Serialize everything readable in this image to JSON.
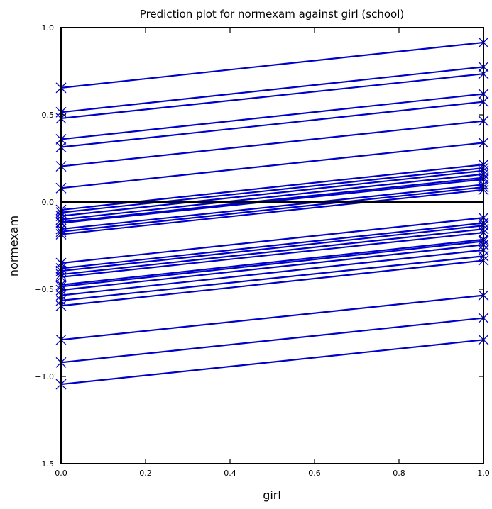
{
  "chart_data": {
    "type": "line",
    "title": "Prediction plot for normexam against girl (school)",
    "xlabel": "girl",
    "ylabel": "normexam",
    "xlim": [
      0.0,
      1.0
    ],
    "ylim": [
      -1.5,
      1.0
    ],
    "x_ticks": [
      0.0,
      0.2,
      0.4,
      0.6,
      0.8,
      1.0
    ],
    "x_tick_labels": [
      "0.0",
      "0.2",
      "0.4",
      "0.6",
      "0.8",
      "1.0"
    ],
    "y_ticks": [
      -1.5,
      -1.0,
      -0.5,
      0.0,
      0.5,
      1.0
    ],
    "y_tick_labels": [
      "−1.5",
      "−1.0",
      "−0.5",
      "0.0",
      "0.5",
      "1.0"
    ],
    "reference_line_y": 0.0,
    "line_color": "#0000cc",
    "reference_color": "#000000",
    "marker": "x",
    "grid": false,
    "series": [
      {
        "values": [
          0.655,
          0.915
        ]
      },
      {
        "values": [
          0.515,
          0.775
        ]
      },
      {
        "values": [
          0.48,
          0.735
        ]
      },
      {
        "values": [
          0.36,
          0.62
        ]
      },
      {
        "values": [
          0.315,
          0.575
        ]
      },
      {
        "values": [
          0.205,
          0.465
        ]
      },
      {
        "values": [
          0.08,
          0.34
        ]
      },
      {
        "values": [
          -0.045,
          0.215
        ]
      },
      {
        "values": [
          -0.06,
          0.195
        ]
      },
      {
        "values": [
          -0.08,
          0.18
        ]
      },
      {
        "values": [
          -0.1,
          0.16
        ]
      },
      {
        "values": [
          -0.115,
          0.14
        ]
      },
      {
        "values": [
          -0.12,
          0.13
        ]
      },
      {
        "values": [
          -0.155,
          0.1
        ]
      },
      {
        "values": [
          -0.17,
          0.085
        ]
      },
      {
        "values": [
          -0.185,
          0.07
        ]
      },
      {
        "values": [
          -0.35,
          -0.09
        ]
      },
      {
        "values": [
          -0.38,
          -0.12
        ]
      },
      {
        "values": [
          -0.395,
          -0.135
        ]
      },
      {
        "values": [
          -0.415,
          -0.155
        ]
      },
      {
        "values": [
          -0.43,
          -0.175
        ]
      },
      {
        "values": [
          -0.475,
          -0.215
        ]
      },
      {
        "values": [
          -0.485,
          -0.225
        ]
      },
      {
        "values": [
          -0.505,
          -0.245
        ]
      },
      {
        "values": [
          -0.535,
          -0.275
        ]
      },
      {
        "values": [
          -0.565,
          -0.31
        ]
      },
      {
        "values": [
          -0.595,
          -0.335
        ]
      },
      {
        "values": [
          -0.79,
          -0.535
        ]
      },
      {
        "values": [
          -0.92,
          -0.665
        ]
      },
      {
        "values": [
          -1.045,
          -0.79
        ]
      }
    ]
  }
}
